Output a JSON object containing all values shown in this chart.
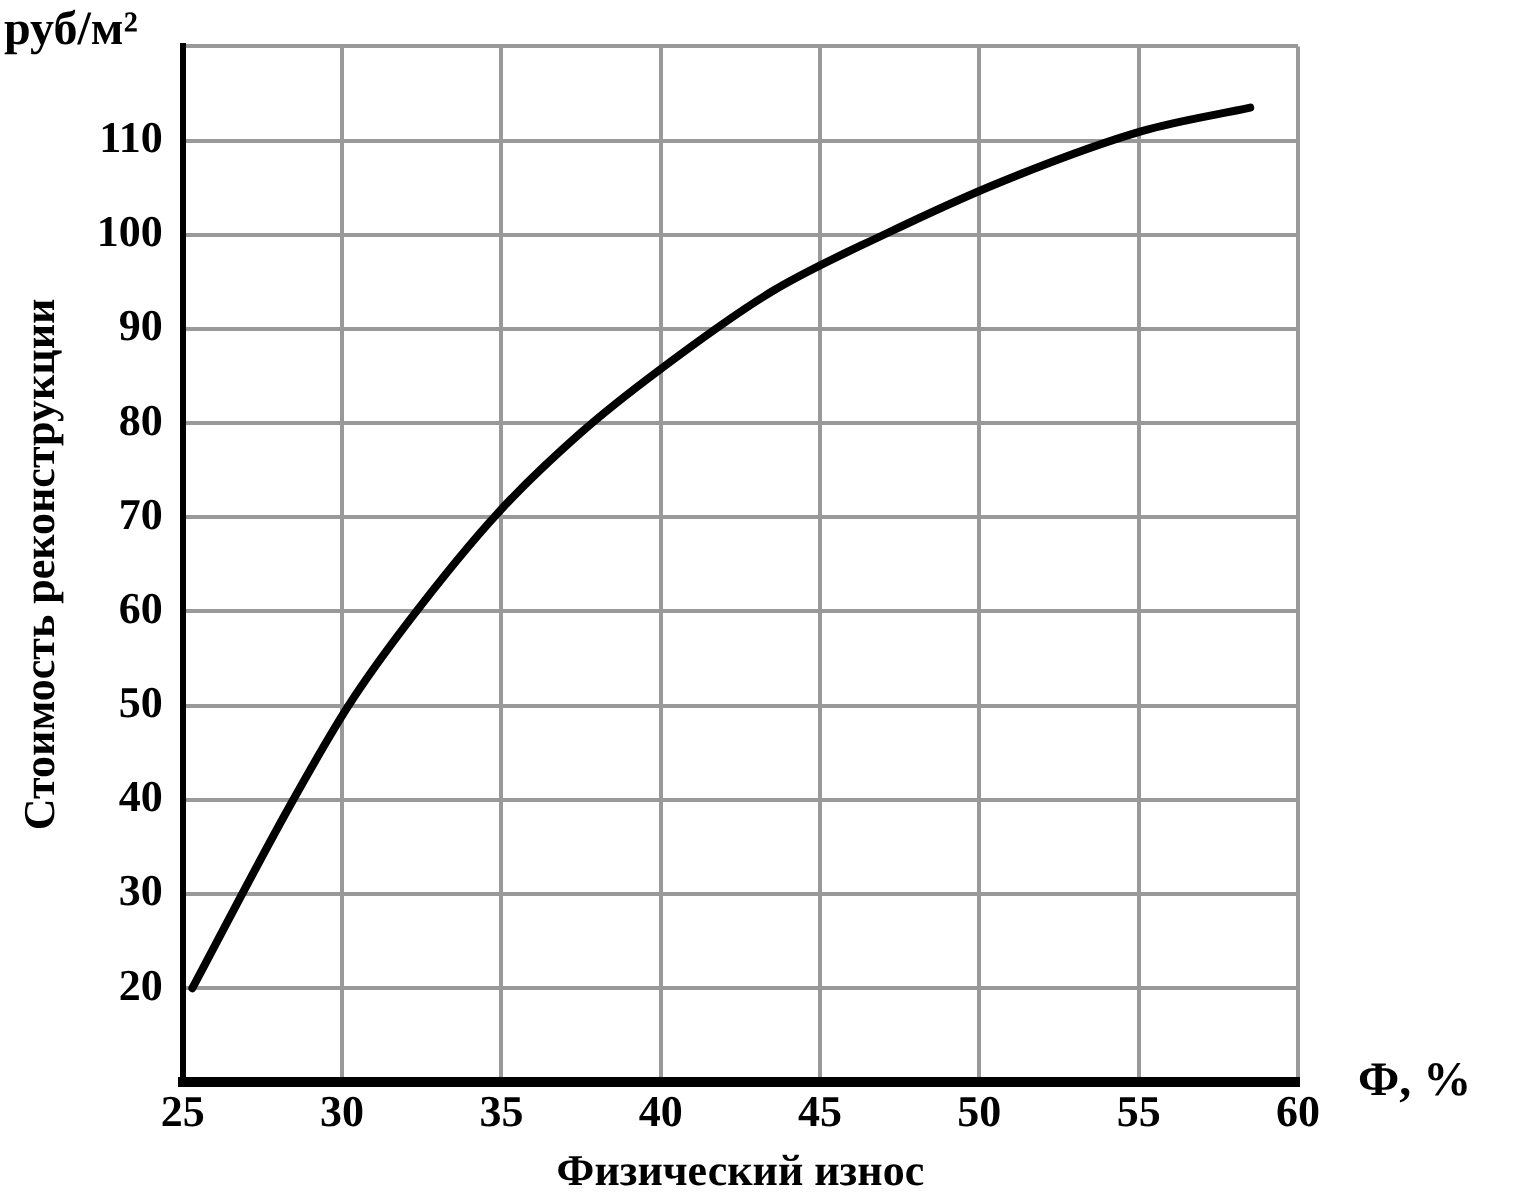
{
  "chart_data": {
    "type": "line",
    "xlabel": "Физический износ",
    "ylabel": "Стоимость реконструкции",
    "annotations": [
      "руб/м²",
      "Ф, %"
    ],
    "x": [
      25.3,
      28.3,
      30.2,
      32.1,
      34.9,
      37.5,
      39.9,
      43.5,
      47,
      50.6,
      55.1,
      58.5
    ],
    "series": [
      {
        "color": "#000000",
        "values": [
          20,
          39,
          50,
          59,
          70.5,
          79,
          85.5,
          94,
          100,
          105.5,
          111,
          113.5
        ]
      }
    ],
    "xlim": [
      25,
      60
    ],
    "xticks": [
      25,
      30,
      35,
      40,
      45,
      50,
      55,
      60
    ],
    "ylim": [
      10,
      120
    ],
    "yticks": [
      {
        "value": 10,
        "label": null
      },
      20,
      30,
      40,
      50,
      60,
      70,
      80,
      90,
      100,
      110,
      {
        "value": 120,
        "label": null
      }
    ],
    "grid": true,
    "legend": false,
    "marker": "none",
    "line_style": "solid"
  }
}
